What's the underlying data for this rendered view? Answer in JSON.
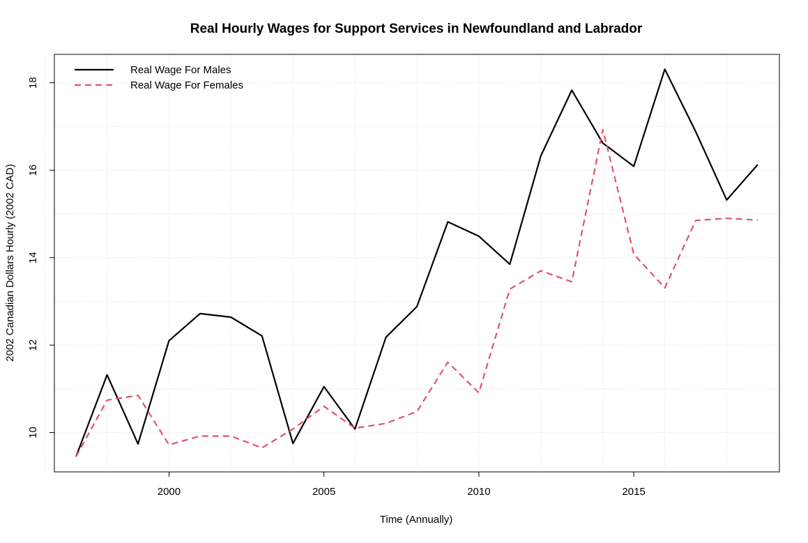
{
  "chart_data": {
    "type": "line",
    "title": "Real Hourly Wages for Support Services in Newfoundland and Labrador",
    "xlabel": "Time (Annually)",
    "ylabel": "2002 Canadian Dollars Hourly (2002 CAD)",
    "xlim": [
      1996.3,
      2019.7
    ],
    "ylim": [
      9.1,
      18.65
    ],
    "xticks": [
      2000,
      2005,
      2010,
      2015
    ],
    "yticks": [
      10,
      12,
      14,
      16,
      18
    ],
    "xgrid": [
      1996,
      1998,
      2000,
      2002,
      2004,
      2006,
      2008,
      2010,
      2012,
      2014,
      2016,
      2018
    ],
    "ygrid": [
      10,
      11,
      12,
      13,
      14,
      15,
      16,
      17,
      18
    ],
    "grid": true,
    "legend_position": "top-left",
    "x": [
      1997,
      1998,
      1999,
      2000,
      2001,
      2002,
      2003,
      2004,
      2005,
      2006,
      2007,
      2008,
      2009,
      2010,
      2011,
      2012,
      2013,
      2014,
      2015,
      2016,
      2017,
      2018,
      2019
    ],
    "series": [
      {
        "name": "Real Wage For Males",
        "color": "#000000",
        "style": "solid",
        "values": [
          9.45,
          11.32,
          9.74,
          12.1,
          12.72,
          12.64,
          12.21,
          9.75,
          11.05,
          10.08,
          12.18,
          12.88,
          14.82,
          14.49,
          13.85,
          16.33,
          17.83,
          16.62,
          16.09,
          18.31,
          16.88,
          15.32,
          16.13
        ]
      },
      {
        "name": "Real Wage For Females",
        "color": "#DF536B",
        "style": "dashed",
        "values": [
          9.45,
          10.74,
          10.85,
          9.72,
          9.92,
          9.92,
          9.65,
          10.08,
          10.6,
          10.1,
          10.21,
          10.48,
          11.61,
          10.91,
          13.28,
          13.7,
          13.45,
          16.93,
          14.08,
          13.31,
          14.85,
          14.9,
          14.86
        ]
      }
    ]
  }
}
